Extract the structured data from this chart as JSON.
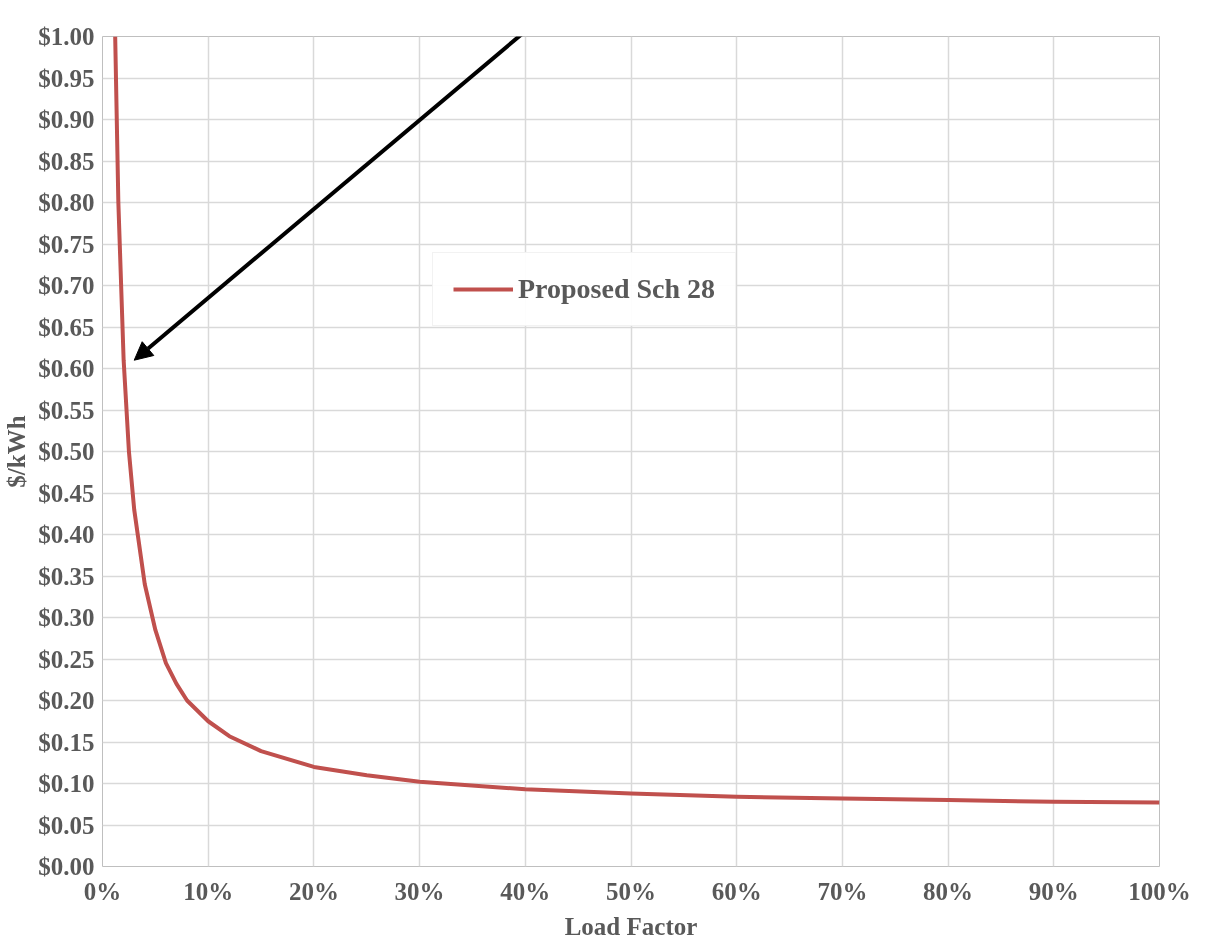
{
  "chart_data": {
    "type": "line",
    "xlabel": "Load Factor",
    "ylabel": "$/kWh",
    "x": [
      1.2,
      1.5,
      2,
      2.5,
      3,
      4,
      5,
      6,
      7,
      8,
      10,
      12,
      15,
      20,
      25,
      30,
      40,
      50,
      60,
      70,
      80,
      90,
      100
    ],
    "series": [
      {
        "name": "Proposed Sch 28",
        "color": "#c0504d",
        "values": [
          1.0,
          0.8,
          0.61,
          0.5,
          0.43,
          0.34,
          0.285,
          0.245,
          0.22,
          0.2,
          0.175,
          0.157,
          0.139,
          0.12,
          0.11,
          0.102,
          0.093,
          0.088,
          0.084,
          0.082,
          0.08,
          0.078,
          0.077
        ]
      }
    ],
    "xlim": [
      0,
      100
    ],
    "xticks": [
      {
        "value": 0,
        "label": "0%"
      },
      {
        "value": 10,
        "label": "10%"
      },
      {
        "value": 20,
        "label": "20%"
      },
      {
        "value": 30,
        "label": "30%"
      },
      {
        "value": 40,
        "label": "40%"
      },
      {
        "value": 50,
        "label": "50%"
      },
      {
        "value": 60,
        "label": "60%"
      },
      {
        "value": 70,
        "label": "70%"
      },
      {
        "value": 80,
        "label": "80%"
      },
      {
        "value": 90,
        "label": "90%"
      },
      {
        "value": 100,
        "label": "100%"
      }
    ],
    "ylim": [
      0,
      1
    ],
    "yticks": [
      {
        "value": 0,
        "label": "$0.00"
      },
      {
        "value": 0.05,
        "label": "$0.05"
      },
      {
        "value": 0.1,
        "label": "$0.10"
      },
      {
        "value": 0.15,
        "label": "$0.15"
      },
      {
        "value": 0.2,
        "label": "$0.20"
      },
      {
        "value": 0.25,
        "label": "$0.25"
      },
      {
        "value": 0.3,
        "label": "$0.30"
      },
      {
        "value": 0.35,
        "label": "$0.35"
      },
      {
        "value": 0.4,
        "label": "$0.40"
      },
      {
        "value": 0.45,
        "label": "$0.45"
      },
      {
        "value": 0.5,
        "label": "$0.50"
      },
      {
        "value": 0.55,
        "label": "$0.55"
      },
      {
        "value": 0.6,
        "label": "$0.60"
      },
      {
        "value": 0.65,
        "label": "$0.65"
      },
      {
        "value": 0.7,
        "label": "$0.70"
      },
      {
        "value": 0.75,
        "label": "$0.75"
      },
      {
        "value": 0.8,
        "label": "$0.80"
      },
      {
        "value": 0.85,
        "label": "$0.85"
      },
      {
        "value": 0.9,
        "label": "$0.90"
      },
      {
        "value": 0.95,
        "label": "$0.95"
      },
      {
        "value": 1,
        "label": "$1.00"
      }
    ],
    "grid": true,
    "legend": "top",
    "marker": "none",
    "line_style": "solid"
  }
}
